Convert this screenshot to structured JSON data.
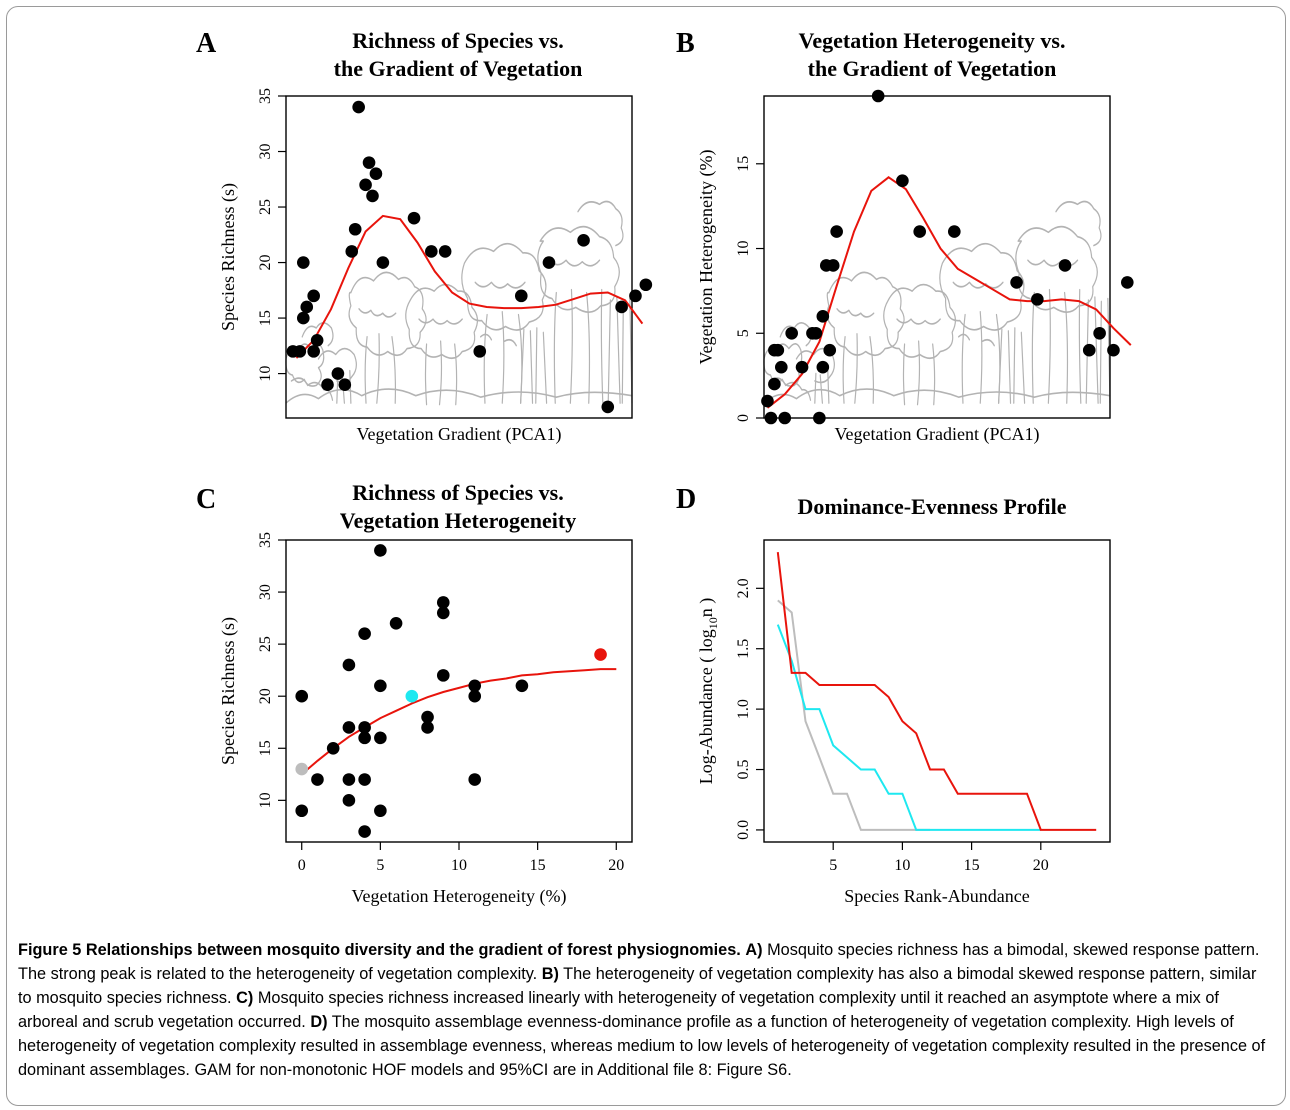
{
  "colors": {
    "fit": "#e8140c",
    "dots": "#000000",
    "sketch": "#b3b3b3",
    "cyan": "#1ee8f0",
    "gray": "#bdbdbd",
    "red": "#e8140c"
  },
  "chart_data": [
    {
      "id": "A",
      "letter": "A",
      "type": "scatter",
      "title_lines": [
        "Richness of Species vs.",
        "the Gradient of Vegetation"
      ],
      "xlabel": "Vegetation Gradient (PCA1)",
      "ylabel": "Species Richness (s)",
      "x_ticks_shown": false,
      "xlim": [
        0,
        100
      ],
      "ylim": [
        6,
        35
      ],
      "yticks": [
        10,
        15,
        20,
        25,
        30,
        35
      ],
      "points": [
        [
          2,
          12
        ],
        [
          5,
          20
        ],
        [
          5,
          15
        ],
        [
          6,
          16
        ],
        [
          8,
          17
        ],
        [
          8,
          12
        ],
        [
          9,
          13
        ],
        [
          4,
          12
        ],
        [
          12,
          9
        ],
        [
          15,
          10
        ],
        [
          17,
          9
        ],
        [
          19,
          21
        ],
        [
          20,
          23
        ],
        [
          21,
          34
        ],
        [
          23,
          27
        ],
        [
          24,
          29
        ],
        [
          25,
          26
        ],
        [
          26,
          28
        ],
        [
          28,
          20
        ],
        [
          37,
          24
        ],
        [
          42,
          21
        ],
        [
          46,
          21
        ],
        [
          56,
          12
        ],
        [
          68,
          17
        ],
        [
          76,
          20
        ],
        [
          86,
          22
        ],
        [
          93,
          7
        ],
        [
          97,
          16
        ],
        [
          101,
          17
        ],
        [
          104,
          18
        ]
      ],
      "fit": [
        [
          3,
          11.4
        ],
        [
          8,
          13.0
        ],
        [
          13,
          15.8
        ],
        [
          18,
          19.5
        ],
        [
          23,
          22.8
        ],
        [
          28,
          24.2
        ],
        [
          33,
          23.9
        ],
        [
          38,
          21.8
        ],
        [
          43,
          19.2
        ],
        [
          48,
          17.3
        ],
        [
          53,
          16.3
        ],
        [
          58,
          16.0
        ],
        [
          63,
          15.9
        ],
        [
          68,
          15.9
        ],
        [
          73,
          16.0
        ],
        [
          78,
          16.2
        ],
        [
          83,
          16.7
        ],
        [
          88,
          17.2
        ],
        [
          93,
          17.3
        ],
        [
          98,
          16.6
        ],
        [
          103,
          14.5
        ]
      ]
    },
    {
      "id": "B",
      "letter": "B",
      "type": "scatter",
      "title_lines": [
        "Vegetation Heterogeneity vs.",
        "the Gradient of Vegetation"
      ],
      "xlabel": "Vegetation Gradient (PCA1)",
      "ylabel": "Vegetation Heterogeneity (%)",
      "x_ticks_shown": false,
      "xlim": [
        0,
        100
      ],
      "ylim": [
        0,
        19
      ],
      "yticks": [
        0,
        5,
        10,
        15
      ],
      "points": [
        [
          1,
          1
        ],
        [
          2,
          0
        ],
        [
          3,
          2
        ],
        [
          3,
          4
        ],
        [
          4,
          4
        ],
        [
          5,
          3
        ],
        [
          6,
          0
        ],
        [
          8,
          5
        ],
        [
          11,
          3
        ],
        [
          16,
          0
        ],
        [
          17,
          3
        ],
        [
          14,
          5
        ],
        [
          15,
          5
        ],
        [
          17,
          6
        ],
        [
          18,
          9
        ],
        [
          19,
          4
        ],
        [
          20,
          9
        ],
        [
          21,
          11
        ],
        [
          33,
          19
        ],
        [
          40,
          14
        ],
        [
          45,
          11
        ],
        [
          55,
          11
        ],
        [
          73,
          8
        ],
        [
          79,
          7
        ],
        [
          87,
          9
        ],
        [
          94,
          4
        ],
        [
          97,
          5
        ],
        [
          101,
          4
        ],
        [
          105,
          8
        ]
      ],
      "fit": [
        [
          1,
          0.6
        ],
        [
          6,
          1.4
        ],
        [
          11,
          2.6
        ],
        [
          16,
          4.5
        ],
        [
          21,
          7.8
        ],
        [
          26,
          11.0
        ],
        [
          31,
          13.4
        ],
        [
          36,
          14.2
        ],
        [
          41,
          13.5
        ],
        [
          46,
          11.8
        ],
        [
          51,
          10.0
        ],
        [
          56,
          8.8
        ],
        [
          61,
          8.2
        ],
        [
          66,
          7.6
        ],
        [
          71,
          7.0
        ],
        [
          76,
          6.9
        ],
        [
          81,
          6.9
        ],
        [
          86,
          7.0
        ],
        [
          91,
          6.9
        ],
        [
          96,
          6.4
        ],
        [
          101,
          5.3
        ],
        [
          106,
          4.3
        ]
      ]
    },
    {
      "id": "C",
      "letter": "C",
      "type": "scatter",
      "title_lines": [
        "Richness of Species vs.",
        "Vegetation Heterogeneity"
      ],
      "xlabel": "Vegetation Heterogeneity (%)",
      "ylabel": "Species Richness (s)",
      "xlim": [
        -1,
        21
      ],
      "ylim": [
        6,
        35
      ],
      "xticks": [
        0,
        5,
        10,
        15,
        20
      ],
      "yticks": [
        10,
        15,
        20,
        25,
        30,
        35
      ],
      "points": [
        [
          0,
          20
        ],
        [
          0,
          9
        ],
        [
          1,
          12
        ],
        [
          2,
          15
        ],
        [
          3,
          23
        ],
        [
          3,
          17
        ],
        [
          3,
          12
        ],
        [
          3,
          10
        ],
        [
          4,
          26
        ],
        [
          4,
          17
        ],
        [
          4,
          16
        ],
        [
          4,
          12
        ],
        [
          4,
          7
        ],
        [
          5,
          34
        ],
        [
          5,
          21
        ],
        [
          5,
          16
        ],
        [
          5,
          9
        ],
        [
          6,
          27
        ],
        [
          8,
          18
        ],
        [
          8,
          17
        ],
        [
          9,
          29
        ],
        [
          9,
          28
        ],
        [
          9,
          22
        ],
        [
          11,
          21
        ],
        [
          11,
          20
        ],
        [
          11,
          12
        ],
        [
          14,
          21
        ]
      ],
      "highlighted": [
        {
          "x": 0,
          "y": 13,
          "color": "#bdbdbd"
        },
        {
          "x": 7,
          "y": 20,
          "color": "#1ee8f0"
        },
        {
          "x": 19,
          "y": 24,
          "color": "#e8140c"
        }
      ],
      "fit": [
        [
          0,
          12.5
        ],
        [
          1,
          13.8
        ],
        [
          2,
          15.0
        ],
        [
          3,
          16.1
        ],
        [
          4,
          17.0
        ],
        [
          5,
          17.9
        ],
        [
          6,
          18.6
        ],
        [
          7,
          19.3
        ],
        [
          8,
          19.9
        ],
        [
          9,
          20.4
        ],
        [
          10,
          20.8
        ],
        [
          11,
          21.2
        ],
        [
          12,
          21.5
        ],
        [
          13,
          21.7
        ],
        [
          14,
          22.0
        ],
        [
          15,
          22.1
        ],
        [
          16,
          22.3
        ],
        [
          17,
          22.4
        ],
        [
          18,
          22.5
        ],
        [
          19,
          22.6
        ],
        [
          20,
          22.6
        ]
      ]
    },
    {
      "id": "D",
      "letter": "D",
      "type": "line",
      "title_lines": [
        "Dominance-Evenness Profile"
      ],
      "xlabel": "Species Rank-Abundance",
      "ylabel_prefix": "Log-Abundance ( log",
      "ylabel_sub": "10",
      "ylabel_suffix": "n )",
      "xlim": [
        0,
        25
      ],
      "ylim": [
        -0.1,
        2.4
      ],
      "xticks": [
        5,
        10,
        15,
        20
      ],
      "yticks": [
        0.0,
        0.5,
        1.0,
        1.5,
        2.0
      ],
      "ytick_labels": [
        "0.0",
        "0.5",
        "1.0",
        "1.5",
        "2.0"
      ],
      "series": [
        {
          "color": "#e8140c",
          "points": [
            [
              1,
              2.3
            ],
            [
              2,
              1.3
            ],
            [
              3,
              1.3
            ],
            [
              4,
              1.2
            ],
            [
              5,
              1.2
            ],
            [
              6,
              1.2
            ],
            [
              7,
              1.2
            ],
            [
              8,
              1.2
            ],
            [
              9,
              1.1
            ],
            [
              10,
              0.9
            ],
            [
              11,
              0.8
            ],
            [
              12,
              0.5
            ],
            [
              13,
              0.5
            ],
            [
              14,
              0.3
            ],
            [
              15,
              0.3
            ],
            [
              16,
              0.3
            ],
            [
              17,
              0.3
            ],
            [
              18,
              0.3
            ],
            [
              19,
              0.3
            ],
            [
              20,
              0
            ],
            [
              24,
              0
            ]
          ]
        },
        {
          "color": "#1ee8f0",
          "points": [
            [
              1,
              1.7
            ],
            [
              2,
              1.4
            ],
            [
              3,
              1.0
            ],
            [
              4,
              1.0
            ],
            [
              5,
              0.7
            ],
            [
              6,
              0.6
            ],
            [
              7,
              0.5
            ],
            [
              8,
              0.5
            ],
            [
              9,
              0.3
            ],
            [
              10,
              0.3
            ],
            [
              11,
              0
            ],
            [
              20,
              0
            ]
          ]
        },
        {
          "color": "#bdbdbd",
          "points": [
            [
              1,
              1.9
            ],
            [
              2,
              1.8
            ],
            [
              3,
              0.9
            ],
            [
              4,
              0.6
            ],
            [
              5,
              0.3
            ],
            [
              6,
              0.3
            ],
            [
              7,
              0
            ],
            [
              12,
              0
            ]
          ]
        }
      ]
    }
  ],
  "caption": {
    "bold_lead": "Figure 5 Relationships between mosquito diversity and the gradient of forest physiognomies.",
    "a_label": "A)",
    "a_text": "Mosquito species richness has a bimodal, skewed response pattern. The strong peak is related to the heterogeneity of vegetation complexity.",
    "b_label": "B)",
    "b_text": "The heterogeneity of vegetation complexity has also a bimodal skewed response pattern, similar to mosquito species richness.",
    "c_label": "C)",
    "c_text": "Mosquito species richness increased linearly with heterogeneity of vegetation complexity until it reached an asymptote where a mix of arboreal and scrub vegetation occurred.",
    "d_label": "D)",
    "d_text": "The mosquito assemblage evenness-dominance profile as a function of heterogeneity of vegetation complexity. High levels of heterogeneity of vegetation complexity resulted in assemblage evenness, whereas medium to low levels of heterogeneity of vegetation complexity resulted in the presence of dominant assemblages. GAM for non-monotonic HOF models and 95%CI are in Additional file 8: Figure S6."
  }
}
